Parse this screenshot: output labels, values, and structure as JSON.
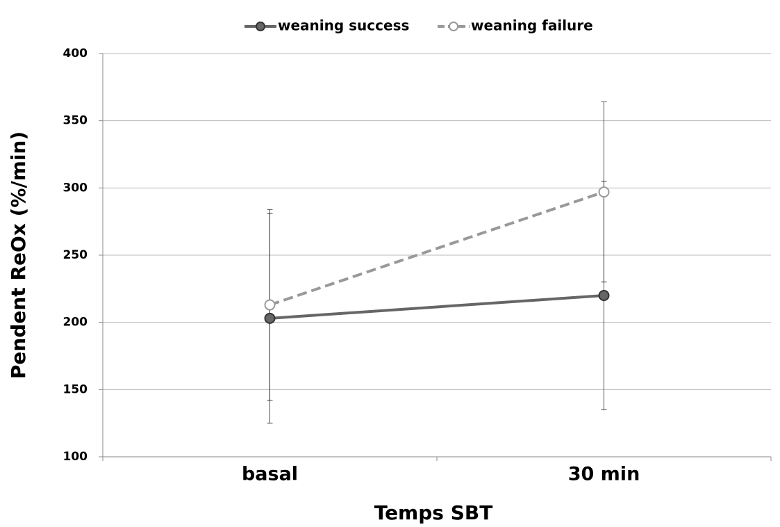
{
  "chart_data": {
    "type": "line",
    "x_label": "Temps SBT",
    "y_label": "Pendent ReOx (%/min)",
    "categories": [
      "basal",
      "30 min"
    ],
    "series": [
      {
        "name": "weaning success",
        "color": "#666666",
        "marker": "filled",
        "dashed": false,
        "values": [
          203,
          220
        ],
        "errors": [
          78,
          85
        ]
      },
      {
        "name": "weaning failure",
        "color": "#999999",
        "marker": "open",
        "dashed": true,
        "values": [
          213,
          297
        ],
        "errors": [
          71,
          67
        ]
      }
    ],
    "ylim": [
      100,
      400
    ],
    "yticks": [
      100,
      150,
      200,
      250,
      300,
      350,
      400
    ],
    "grid": true,
    "legend": "top"
  }
}
